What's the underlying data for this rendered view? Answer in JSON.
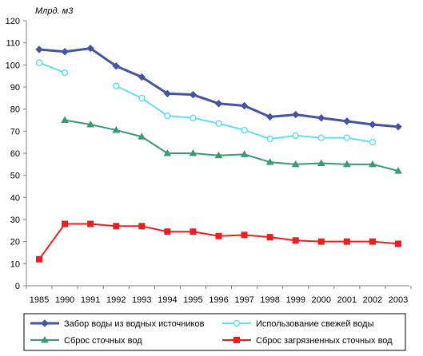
{
  "chart_data": {
    "type": "line",
    "y_unit_label": "Млрд. м3",
    "categories": [
      "1985",
      "1990",
      "1991",
      "1992",
      "1993",
      "1994",
      "1995",
      "1996",
      "1997",
      "1998",
      "1999",
      "2000",
      "2001",
      "2002",
      "2003"
    ],
    "ylim": [
      0,
      120
    ],
    "y_ticks": [
      0,
      10,
      20,
      30,
      40,
      50,
      60,
      70,
      80,
      90,
      100,
      110,
      120
    ],
    "grid": false,
    "legend_position": "bottom",
    "series": [
      {
        "name": "Забор воды из водных источников",
        "color": "#4455a0",
        "marker": "diamond",
        "line_width": 3,
        "values": [
          107,
          106,
          107.5,
          99.5,
          94.5,
          87,
          86.5,
          82.5,
          81.5,
          76.5,
          77.5,
          76,
          74.5,
          73,
          72
        ]
      },
      {
        "name": "Использование свежей воды",
        "color": "#66ddee",
        "marker": "circle-open",
        "line_width": 2,
        "values": [
          101,
          96.5,
          null,
          90.5,
          85,
          77,
          76,
          73.5,
          70.5,
          66.5,
          68,
          67,
          67,
          65,
          null
        ]
      },
      {
        "name": "Сброс сточных вод",
        "color": "#3a9a74",
        "marker": "triangle",
        "line_width": 2,
        "values": [
          null,
          75,
          73,
          70.5,
          67.5,
          60,
          60,
          59,
          59.5,
          56,
          55,
          55.5,
          55,
          55,
          52
        ]
      },
      {
        "name": "Сброс загрязненных сточных вод",
        "color": "#e82020",
        "marker": "square",
        "line_width": 2,
        "values": [
          12,
          28,
          28,
          27,
          27,
          24.5,
          24.5,
          22.5,
          23,
          22,
          20.5,
          20,
          20,
          20,
          19
        ]
      }
    ]
  }
}
